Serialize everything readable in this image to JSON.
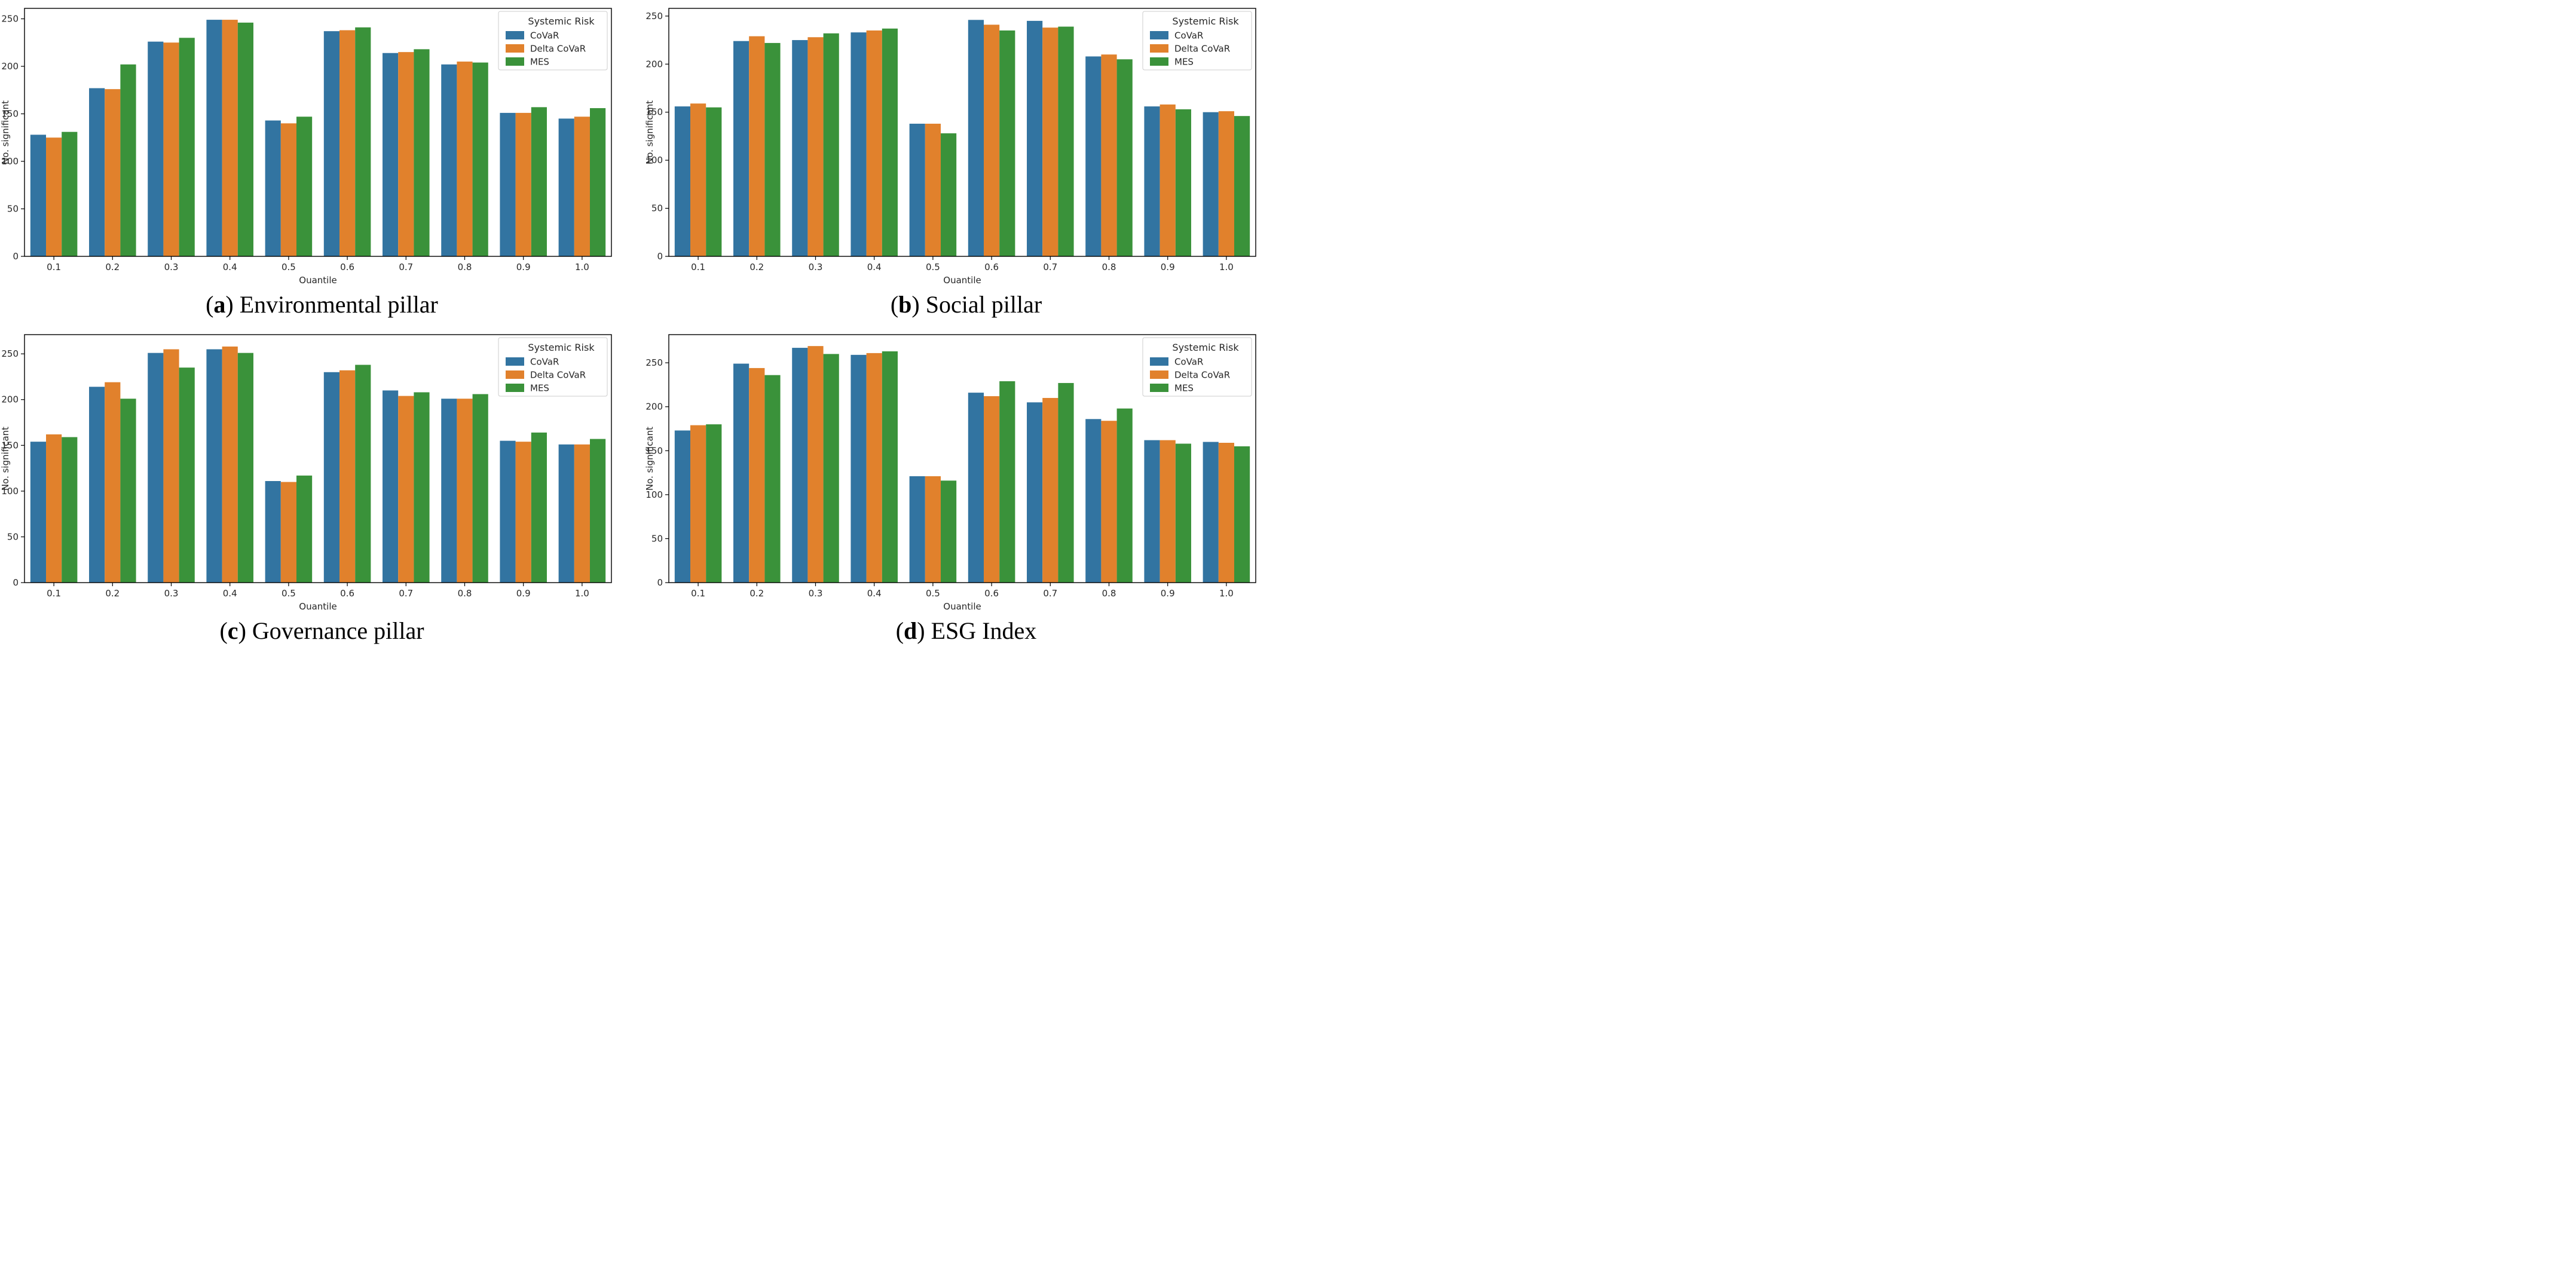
{
  "page": {
    "background": "#ffffff"
  },
  "colors": {
    "covar": "#3274a1",
    "delta_covar": "#e1812c",
    "mes": "#3a923a",
    "frame": "#000000",
    "text": "#262626",
    "legend_border": "#cccccc"
  },
  "legend": {
    "title": "Systemic Risk",
    "entries": [
      {
        "label": "CoVaR",
        "color": "#3274a1"
      },
      {
        "label": "Delta CoVaR",
        "color": "#e1812c"
      },
      {
        "label": "MES",
        "color": "#3a923a"
      }
    ]
  },
  "axes": {
    "xlabel": "Quantile",
    "ylabel": "No. significant"
  },
  "chart_data": [
    {
      "type": "bar",
      "caption": {
        "open": "(",
        "letter": "a",
        "close": ")",
        "text": "Environmental pillar"
      },
      "xlabel": "Quantile",
      "ylabel": "No. significant",
      "categories": [
        "0.1",
        "0.2",
        "0.3",
        "0.4",
        "0.5",
        "0.6",
        "0.7",
        "0.8",
        "0.9",
        "1.0"
      ],
      "yticks": [
        0,
        50,
        100,
        150,
        200,
        250
      ],
      "ylim": [
        0,
        261
      ],
      "grid": false,
      "legend_position": "upper right",
      "series": [
        {
          "name": "CoVaR",
          "color": "#3274a1",
          "values": [
            128,
            177,
            226,
            249,
            143,
            237,
            214,
            202,
            151,
            145
          ]
        },
        {
          "name": "Delta CoVaR",
          "color": "#e1812c",
          "values": [
            125,
            176,
            225,
            249,
            140,
            238,
            215,
            205,
            151,
            147
          ]
        },
        {
          "name": "MES",
          "color": "#3a923a",
          "values": [
            131,
            202,
            230,
            246,
            147,
            241,
            218,
            204,
            157,
            156
          ]
        }
      ]
    },
    {
      "type": "bar",
      "caption": {
        "open": "(",
        "letter": "b",
        "close": ")",
        "text": "Social pillar"
      },
      "xlabel": "Quantile",
      "ylabel": "No. significant",
      "categories": [
        "0.1",
        "0.2",
        "0.3",
        "0.4",
        "0.5",
        "0.6",
        "0.7",
        "0.8",
        "0.9",
        "1.0"
      ],
      "yticks": [
        0,
        50,
        100,
        150,
        200,
        250
      ],
      "ylim": [
        0,
        258
      ],
      "grid": false,
      "legend_position": "upper right",
      "series": [
        {
          "name": "CoVaR",
          "color": "#3274a1",
          "values": [
            156,
            224,
            225,
            233,
            138,
            246,
            245,
            208,
            156,
            150
          ]
        },
        {
          "name": "Delta CoVaR",
          "color": "#e1812c",
          "values": [
            159,
            229,
            228,
            235,
            138,
            241,
            238,
            210,
            158,
            151
          ]
        },
        {
          "name": "MES",
          "color": "#3a923a",
          "values": [
            155,
            222,
            232,
            237,
            128,
            235,
            239,
            205,
            153,
            146
          ]
        }
      ]
    },
    {
      "type": "bar",
      "caption": {
        "open": "(",
        "letter": "c",
        "close": ")",
        "text": "Governance pillar"
      },
      "xlabel": "Quantile",
      "ylabel": "No. significant",
      "categories": [
        "0.1",
        "0.2",
        "0.3",
        "0.4",
        "0.5",
        "0.6",
        "0.7",
        "0.8",
        "0.9",
        "1.0"
      ],
      "yticks": [
        0,
        50,
        100,
        150,
        200,
        250
      ],
      "ylim": [
        0,
        271
      ],
      "grid": false,
      "legend_position": "upper right",
      "series": [
        {
          "name": "CoVaR",
          "color": "#3274a1",
          "values": [
            154,
            214,
            251,
            255,
            111,
            230,
            210,
            201,
            155,
            151
          ]
        },
        {
          "name": "Delta CoVaR",
          "color": "#e1812c",
          "values": [
            162,
            219,
            255,
            258,
            110,
            232,
            204,
            201,
            154,
            151
          ]
        },
        {
          "name": "MES",
          "color": "#3a923a",
          "values": [
            159,
            201,
            235,
            251,
            117,
            238,
            208,
            206,
            164,
            157
          ]
        }
      ]
    },
    {
      "type": "bar",
      "caption": {
        "open": "(",
        "letter": "d",
        "close": ")",
        "text": "ESG Index"
      },
      "xlabel": "Quantile",
      "ylabel": "No. significant",
      "categories": [
        "0.1",
        "0.2",
        "0.3",
        "0.4",
        "0.5",
        "0.6",
        "0.7",
        "0.8",
        "0.9",
        "1.0"
      ],
      "yticks": [
        0,
        50,
        100,
        150,
        200,
        250
      ],
      "ylim": [
        0,
        282
      ],
      "grid": false,
      "legend_position": "upper right",
      "series": [
        {
          "name": "CoVaR",
          "color": "#3274a1",
          "values": [
            173,
            249,
            267,
            259,
            121,
            216,
            205,
            186,
            162,
            160
          ]
        },
        {
          "name": "Delta CoVaR",
          "color": "#e1812c",
          "values": [
            179,
            244,
            269,
            261,
            121,
            212,
            210,
            184,
            162,
            159
          ]
        },
        {
          "name": "MES",
          "color": "#3a923a",
          "values": [
            180,
            236,
            260,
            263,
            116,
            229,
            227,
            198,
            158,
            155
          ]
        }
      ]
    }
  ]
}
